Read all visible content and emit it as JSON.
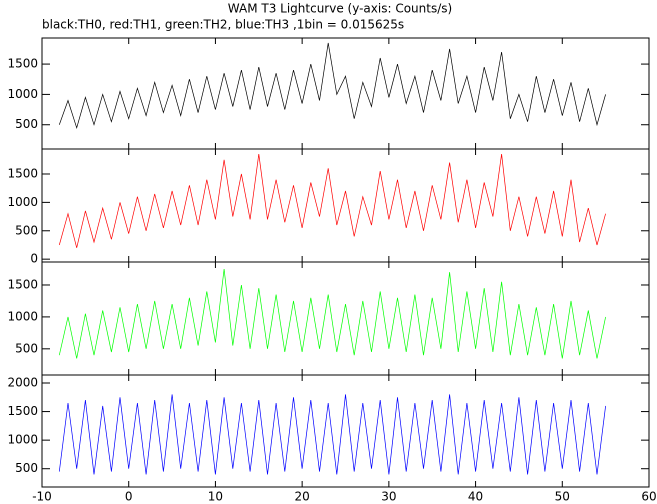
{
  "title": "WAM T3 Lightcurve (y-axis: Counts/s)",
  "subtitle": "black:TH0, red:TH1, green:TH2, blue:TH3 ,1bin = 0.015625s",
  "chart_data": [
    {
      "type": "line",
      "color": "#000000",
      "x": [
        -8,
        -7,
        -6,
        -5,
        -4,
        -3,
        -2,
        -1,
        0,
        1,
        2,
        3,
        4,
        5,
        6,
        7,
        8,
        9,
        10,
        11,
        12,
        13,
        14,
        15,
        16,
        17,
        18,
        19,
        20,
        21,
        22,
        23,
        24,
        25,
        26,
        27,
        28,
        29,
        30,
        31,
        32,
        33,
        34,
        35,
        36,
        37,
        38,
        39,
        40,
        41,
        42,
        43,
        44,
        45,
        46,
        47,
        48,
        49,
        50,
        51,
        52,
        53,
        54,
        55
      ],
      "values": [
        500,
        900,
        450,
        950,
        500,
        1000,
        550,
        1050,
        600,
        1100,
        650,
        1200,
        700,
        1150,
        650,
        1250,
        700,
        1300,
        750,
        1350,
        800,
        1400,
        750,
        1450,
        800,
        1350,
        750,
        1400,
        850,
        1500,
        900,
        1850,
        1000,
        1300,
        600,
        1200,
        800,
        1600,
        950,
        1500,
        850,
        1300,
        700,
        1400,
        900,
        1750,
        850,
        1300,
        700,
        1450,
        900,
        1700,
        600,
        1000,
        550,
        1300,
        700,
        1250,
        650,
        1200,
        550,
        1100,
        500,
        1000
      ],
      "xlim": [
        -10,
        60
      ],
      "xticks": [
        -10,
        0,
        10,
        20,
        30,
        40,
        50,
        60
      ],
      "ylim": [
        100,
        1930
      ],
      "yticks": [
        500,
        1000,
        1500
      ]
    },
    {
      "type": "line",
      "color": "#ff0000",
      "x": [
        -8,
        -7,
        -6,
        -5,
        -4,
        -3,
        -2,
        -1,
        0,
        1,
        2,
        3,
        4,
        5,
        6,
        7,
        8,
        9,
        10,
        11,
        12,
        13,
        14,
        15,
        16,
        17,
        18,
        19,
        20,
        21,
        22,
        23,
        24,
        25,
        26,
        27,
        28,
        29,
        30,
        31,
        32,
        33,
        34,
        35,
        36,
        37,
        38,
        39,
        40,
        41,
        42,
        43,
        44,
        45,
        46,
        47,
        48,
        49,
        50,
        51,
        52,
        53,
        54,
        55
      ],
      "values": [
        250,
        800,
        200,
        850,
        300,
        900,
        350,
        1000,
        450,
        1100,
        500,
        1150,
        550,
        1200,
        600,
        1300,
        600,
        1400,
        700,
        1750,
        750,
        1500,
        700,
        1850,
        700,
        1400,
        650,
        1300,
        550,
        1350,
        750,
        1600,
        600,
        1200,
        400,
        1100,
        600,
        1550,
        700,
        1400,
        550,
        1200,
        500,
        1300,
        700,
        1700,
        650,
        1400,
        550,
        1350,
        750,
        1850,
        500,
        1100,
        400,
        1100,
        450,
        1200,
        400,
        1400,
        300,
        900,
        250,
        800
      ],
      "xlim": [
        -10,
        60
      ],
      "xticks": [
        -10,
        0,
        10,
        20,
        30,
        40,
        50,
        60
      ],
      "ylim": [
        -50,
        1940
      ],
      "yticks": [
        0,
        500,
        1000,
        1500
      ]
    },
    {
      "type": "line",
      "color": "#00ff00",
      "x": [
        -8,
        -7,
        -6,
        -5,
        -4,
        -3,
        -2,
        -1,
        0,
        1,
        2,
        3,
        4,
        5,
        6,
        7,
        8,
        9,
        10,
        11,
        12,
        13,
        14,
        15,
        16,
        17,
        18,
        19,
        20,
        21,
        22,
        23,
        24,
        25,
        26,
        27,
        28,
        29,
        30,
        31,
        32,
        33,
        34,
        35,
        36,
        37,
        38,
        39,
        40,
        41,
        42,
        43,
        44,
        45,
        46,
        47,
        48,
        49,
        50,
        51,
        52,
        53,
        54,
        55
      ],
      "values": [
        400,
        1000,
        350,
        1050,
        400,
        1100,
        450,
        1150,
        450,
        1200,
        500,
        1250,
        500,
        1200,
        500,
        1300,
        550,
        1400,
        600,
        1750,
        550,
        1500,
        500,
        1450,
        500,
        1350,
        450,
        1250,
        450,
        1300,
        500,
        1350,
        450,
        1200,
        400,
        1250,
        450,
        1400,
        500,
        1300,
        450,
        1350,
        400,
        1300,
        500,
        1700,
        450,
        1400,
        500,
        1450,
        450,
        1550,
        400,
        1200,
        400,
        1150,
        400,
        1200,
        350,
        1250,
        400,
        1100,
        350,
        1000
      ],
      "xlim": [
        -10,
        60
      ],
      "xticks": [
        -10,
        0,
        10,
        20,
        30,
        40,
        50,
        60
      ],
      "ylim": [
        90,
        1860
      ],
      "yticks": [
        500,
        1000,
        1500
      ]
    },
    {
      "type": "line",
      "color": "#0000ff",
      "x": [
        -8,
        -7,
        -6,
        -5,
        -4,
        -3,
        -2,
        -1,
        0,
        1,
        2,
        3,
        4,
        5,
        6,
        7,
        8,
        9,
        10,
        11,
        12,
        13,
        14,
        15,
        16,
        17,
        18,
        19,
        20,
        21,
        22,
        23,
        24,
        25,
        26,
        27,
        28,
        29,
        30,
        31,
        32,
        33,
        34,
        35,
        36,
        37,
        38,
        39,
        40,
        41,
        42,
        43,
        44,
        45,
        46,
        47,
        48,
        49,
        50,
        51,
        52,
        53,
        54,
        55
      ],
      "values": [
        450,
        1650,
        500,
        1700,
        400,
        1600,
        450,
        1750,
        500,
        1650,
        400,
        1700,
        450,
        1800,
        500,
        1650,
        450,
        1700,
        400,
        1750,
        500,
        1650,
        450,
        1700,
        400,
        1650,
        450,
        1750,
        500,
        1700,
        450,
        1650,
        400,
        1800,
        450,
        1650,
        500,
        1700,
        400,
        1750,
        450,
        1650,
        500,
        1700,
        450,
        1800,
        400,
        1650,
        450,
        1700,
        500,
        1650,
        450,
        1750,
        400,
        1700,
        450,
        1650,
        500,
        1700,
        450,
        1650,
        400,
        1600
      ],
      "xlim": [
        -10,
        60
      ],
      "xticks": [
        -10,
        0,
        10,
        20,
        30,
        40,
        50,
        60
      ],
      "ylim": [
        180,
        2140
      ],
      "yticks": [
        500,
        1000,
        1500,
        2000
      ]
    }
  ]
}
